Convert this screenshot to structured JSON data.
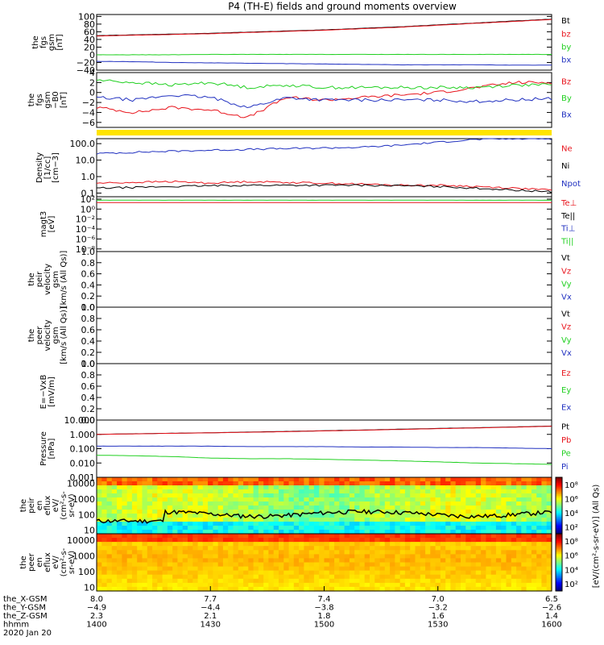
{
  "title": "P4 (TH-E) fields and ground moments overview",
  "colors": {
    "black": "#000000",
    "red": "#e8141c",
    "green": "#20d020",
    "blue": "#2030c0",
    "yellow": "#ffe400"
  },
  "panels": [
    {
      "id": "fgs",
      "ylabel": [
        "the",
        "fgs",
        "gsm",
        "[nT]"
      ],
      "ticks": [
        {
          "v": 100,
          "t": "100"
        },
        {
          "v": 80,
          "t": "80"
        },
        {
          "v": 60,
          "t": "60"
        },
        {
          "v": 40,
          "t": "40"
        },
        {
          "v": 20,
          "t": "20"
        },
        {
          "v": 0,
          "t": "0"
        },
        {
          "v": -20,
          "t": "−20"
        },
        {
          "v": -40,
          "t": "−40"
        }
      ],
      "ylim": [
        -40,
        105
      ],
      "log": false,
      "legend": [
        {
          "t": "Bt",
          "c": "black"
        },
        {
          "t": "bz",
          "c": "red"
        },
        {
          "t": "by",
          "c": "green"
        },
        {
          "t": "bx",
          "c": "blue"
        }
      ]
    },
    {
      "id": "fgs_dsl",
      "ylabel": [
        "the",
        "fgs",
        "gsm",
        "−B0",
        "[nT]"
      ],
      "ticks": [
        {
          "v": 4,
          "t": "4"
        },
        {
          "v": 2,
          "t": "2"
        },
        {
          "v": 0,
          "t": "0"
        },
        {
          "v": -2,
          "t": "−2"
        },
        {
          "v": -4,
          "t": "−4"
        },
        {
          "v": -6,
          "t": "−6"
        }
      ],
      "ylim": [
        -7,
        4
      ],
      "log": false,
      "legend": [
        {
          "t": "Bz",
          "c": "red"
        },
        {
          "t": "By",
          "c": "green"
        },
        {
          "t": "Bx",
          "c": "blue"
        }
      ]
    },
    {
      "id": "flag",
      "ylabel": [],
      "ticks": [],
      "legend": []
    },
    {
      "id": "density",
      "ylabel": [
        "Density",
        "[1/cc]",
        "[cm−3]"
      ],
      "ticks": [
        {
          "v": 100,
          "t": "100.0"
        },
        {
          "v": 10,
          "t": "10.0"
        },
        {
          "v": 1,
          "t": "1.0"
        },
        {
          "v": 0.1,
          "t": "0.1"
        }
      ],
      "ylim": [
        0.06,
        200
      ],
      "log": true,
      "legend": [
        {
          "t": "Ne",
          "c": "red"
        },
        {
          "t": "Ni",
          "c": "black"
        },
        {
          "t": "Npot",
          "c": "blue"
        }
      ]
    },
    {
      "id": "temp",
      "ylabel": [
        "magt3",
        "[eV]"
      ],
      "ticks": [
        {
          "v": 100,
          "t": "10²"
        },
        {
          "v": 1,
          "t": "10⁰"
        },
        {
          "v": 0.01,
          "t": "10⁻²"
        },
        {
          "v": 0.0001,
          "t": "10⁻⁴"
        },
        {
          "v": 1e-06,
          "t": "10⁻⁶"
        },
        {
          "v": 1e-08,
          "t": "10⁻⁸"
        }
      ],
      "ylim": [
        3e-09,
        300
      ],
      "log": true,
      "legend": [
        {
          "t": "Te⊥",
          "c": "red"
        },
        {
          "t": "Te||",
          "c": "black"
        },
        {
          "t": "Ti⊥",
          "c": "blue"
        },
        {
          "t": "Ti||",
          "c": "green"
        }
      ]
    },
    {
      "id": "peir_vel",
      "ylabel": [
        "the",
        "peir",
        "velocity",
        "gsm",
        "[km/s (All Qs)]"
      ],
      "ticks": [
        {
          "v": 1,
          "t": "1.0"
        },
        {
          "v": 0.8,
          "t": "0.8"
        },
        {
          "v": 0.6,
          "t": "0.6"
        },
        {
          "v": 0.4,
          "t": "0.4"
        },
        {
          "v": 0.2,
          "t": "0.2"
        },
        {
          "v": 0,
          "t": "0.0"
        }
      ],
      "ylim": [
        0,
        1
      ],
      "log": false,
      "legend": [
        {
          "t": "Vt",
          "c": "black"
        },
        {
          "t": "Vz",
          "c": "red"
        },
        {
          "t": "Vy",
          "c": "green"
        },
        {
          "t": "Vx",
          "c": "blue"
        }
      ]
    },
    {
      "id": "peer_vel",
      "ylabel": [
        "the",
        "peer",
        "velocity",
        "gsm",
        "[km/s (All Qs)]"
      ],
      "ticks": [
        {
          "v": 1,
          "t": "1.0"
        },
        {
          "v": 0.8,
          "t": "0.8"
        },
        {
          "v": 0.6,
          "t": "0.6"
        },
        {
          "v": 0.4,
          "t": "0.4"
        },
        {
          "v": 0.2,
          "t": "0.2"
        },
        {
          "v": 0,
          "t": "0.0"
        }
      ],
      "ylim": [
        0,
        1
      ],
      "log": false,
      "legend": [
        {
          "t": "Vt",
          "c": "black"
        },
        {
          "t": "Vz",
          "c": "red"
        },
        {
          "t": "Vy",
          "c": "green"
        },
        {
          "t": "Vx",
          "c": "blue"
        }
      ]
    },
    {
      "id": "efield",
      "ylabel": [
        "E=−VxB",
        "[mV/m]"
      ],
      "ticks": [
        {
          "v": 1,
          "t": "1.0"
        },
        {
          "v": 0.8,
          "t": "0.8"
        },
        {
          "v": 0.6,
          "t": "0.6"
        },
        {
          "v": 0.4,
          "t": "0.4"
        },
        {
          "v": 0.2,
          "t": "0.2"
        },
        {
          "v": 0,
          "t": "0.0"
        }
      ],
      "ylim": [
        0,
        1
      ],
      "log": false,
      "legend": [
        {
          "t": "Ez",
          "c": "red"
        },
        {
          "t": "Ey",
          "c": "green"
        },
        {
          "t": "Ex",
          "c": "blue"
        }
      ]
    },
    {
      "id": "pressure",
      "ylabel": [
        "Pressure",
        "[nPa]"
      ],
      "ticks": [
        {
          "v": 10,
          "t": "10.000"
        },
        {
          "v": 1,
          "t": "1.000"
        },
        {
          "v": 0.1,
          "t": "0.100"
        },
        {
          "v": 0.01,
          "t": "0.010"
        },
        {
          "v": 0.001,
          "t": "0.001"
        }
      ],
      "ylim": [
        0.001,
        10
      ],
      "log": true,
      "legend": [
        {
          "t": "Pt",
          "c": "black"
        },
        {
          "t": "Pb",
          "c": "red"
        },
        {
          "t": "Pe",
          "c": "green"
        },
        {
          "t": "Pi",
          "c": "blue"
        }
      ]
    },
    {
      "id": "peir_spec",
      "ylabel": [
        "the",
        "peir",
        "en",
        "eflux",
        "eV/",
        "(cm²-s-",
        "sr-eV)"
      ],
      "ticks": [
        {
          "v": 10000,
          "t": "10000"
        },
        {
          "v": 1000,
          "t": "1000"
        },
        {
          "v": 100,
          "t": "100"
        },
        {
          "v": 10,
          "t": "10"
        }
      ],
      "ylim": [
        6,
        25000
      ],
      "log": true,
      "legend": []
    },
    {
      "id": "peer_spec",
      "ylabel": [
        "the",
        "peer",
        "en",
        "eflux",
        "eV/",
        "(cm²-s-",
        "sr-eV)"
      ],
      "ticks": [
        {
          "v": 10000,
          "t": "10000"
        },
        {
          "v": 1000,
          "t": "1000"
        },
        {
          "v": 100,
          "t": "100"
        },
        {
          "v": 10,
          "t": "10"
        }
      ],
      "ylim": [
        6,
        25000
      ],
      "log": true,
      "legend": []
    }
  ],
  "colorbars": [
    {
      "ticks": [
        {
          "e": 8,
          "t": "10⁸"
        },
        {
          "e": 6,
          "t": "10⁶"
        },
        {
          "e": 4,
          "t": "10⁴"
        },
        {
          "e": 2,
          "t": "10²"
        }
      ],
      "range": [
        1,
        9
      ]
    },
    {
      "ticks": [
        {
          "e": 8,
          "t": "10⁸"
        },
        {
          "e": 6,
          "t": "10⁶"
        },
        {
          "e": 4,
          "t": "10⁴"
        },
        {
          "e": 2,
          "t": "10²"
        }
      ],
      "range": [
        1,
        9
      ]
    }
  ],
  "colorbar_label": "[eV/(cm²-s-sr-eV)] (All Qs)",
  "xaxis": {
    "rows": [
      {
        "label": "the_X-GSM",
        "values": [
          "8.0",
          "7.7",
          "7.4",
          "7.0",
          "6.5"
        ]
      },
      {
        "label": "the_Y-GSM",
        "values": [
          "−4.9",
          "−4.4",
          "−3.8",
          "−3.2",
          "−2.6"
        ]
      },
      {
        "label": "the_Z-GSM",
        "values": [
          "2.3",
          "2.1",
          "1.8",
          "1.6",
          "1.4"
        ]
      },
      {
        "label": "hhmm",
        "values": [
          "1400",
          "1430",
          "1500",
          "1530",
          "1600"
        ]
      }
    ],
    "date": "2020 Jan 20"
  },
  "chart_data": {
    "type": "line",
    "x": [
      1400,
      1410,
      1420,
      1430,
      1440,
      1450,
      1500,
      1510,
      1520,
      1530,
      1540,
      1550,
      1600
    ],
    "series_fgs": [
      {
        "name": "Bt",
        "color": "black",
        "values": [
          50,
          52,
          54,
          56,
          59,
          62,
          65,
          69,
          73,
          78,
          83,
          88,
          93
        ]
      },
      {
        "name": "bz",
        "color": "red",
        "values": [
          49,
          51,
          53,
          55,
          58,
          61,
          64,
          68,
          72,
          77,
          82,
          87,
          92
        ]
      },
      {
        "name": "by",
        "color": "green",
        "values": [
          0,
          0,
          0,
          1,
          1,
          1,
          1,
          1,
          1,
          1,
          1,
          1,
          1
        ]
      },
      {
        "name": "bx",
        "color": "blue",
        "values": [
          -17,
          -18,
          -20,
          -21,
          -22,
          -23,
          -24,
          -25,
          -26,
          -26,
          -26,
          -27,
          -27
        ]
      }
    ],
    "series_dsl": [
      {
        "name": "Bz",
        "color": "red",
        "values": [
          -3,
          -4,
          -3,
          -3.5,
          -5,
          -1,
          -1.5,
          -1,
          -0.5,
          0,
          1,
          2,
          2
        ]
      },
      {
        "name": "By",
        "color": "green",
        "values": [
          2.5,
          2,
          1.5,
          2,
          1,
          1.5,
          1,
          1,
          1,
          1,
          1,
          1.5,
          1.5
        ]
      },
      {
        "name": "Bx",
        "color": "blue",
        "values": [
          -1,
          -1.5,
          -0.5,
          -1,
          -3,
          -1,
          -1.5,
          -1.5,
          -1.5,
          -1.5,
          -1.8,
          -1.5,
          -1.2
        ]
      }
    ],
    "series_density": [
      {
        "name": "Npot",
        "color": "blue",
        "values": [
          25,
          30,
          35,
          40,
          45,
          50,
          55,
          60,
          80,
          120,
          180,
          200,
          200
        ]
      },
      {
        "name": "Ne",
        "color": "red",
        "values": [
          0.4,
          0.45,
          0.5,
          0.4,
          0.5,
          0.45,
          0.4,
          0.35,
          0.3,
          0.3,
          0.25,
          0.2,
          0.15
        ]
      },
      {
        "name": "Ni",
        "color": "black",
        "values": [
          0.2,
          0.22,
          0.25,
          0.28,
          0.3,
          0.3,
          0.3,
          0.3,
          0.28,
          0.25,
          0.2,
          0.15,
          0.12
        ]
      }
    ],
    "series_temp": [
      {
        "name": "Te⊥",
        "color": "red",
        "values": [
          20,
          20,
          20,
          20,
          20,
          20,
          20,
          20,
          20,
          20,
          20,
          20,
          20
        ]
      },
      {
        "name": "Ti||",
        "color": "green",
        "values": [
          60,
          60,
          60,
          60,
          60,
          60,
          60,
          60,
          60,
          60,
          60,
          60,
          60
        ]
      }
    ],
    "series_pressure": [
      {
        "name": "Pt",
        "color": "black",
        "values": [
          1.0,
          1.1,
          1.2,
          1.3,
          1.45,
          1.6,
          1.8,
          2.0,
          2.3,
          2.6,
          2.9,
          3.3,
          3.8
        ]
      },
      {
        "name": "Pb",
        "color": "red",
        "values": [
          1.0,
          1.08,
          1.18,
          1.28,
          1.4,
          1.55,
          1.75,
          1.95,
          2.2,
          2.5,
          2.8,
          3.2,
          3.7
        ]
      },
      {
        "name": "Pi",
        "color": "blue",
        "values": [
          0.15,
          0.15,
          0.15,
          0.15,
          0.14,
          0.14,
          0.14,
          0.13,
          0.13,
          0.12,
          0.12,
          0.11,
          0.1
        ]
      },
      {
        "name": "Pe",
        "color": "green",
        "values": [
          0.035,
          0.032,
          0.028,
          0.022,
          0.02,
          0.02,
          0.018,
          0.016,
          0.014,
          0.012,
          0.01,
          0.009,
          0.008
        ]
      }
    ]
  }
}
